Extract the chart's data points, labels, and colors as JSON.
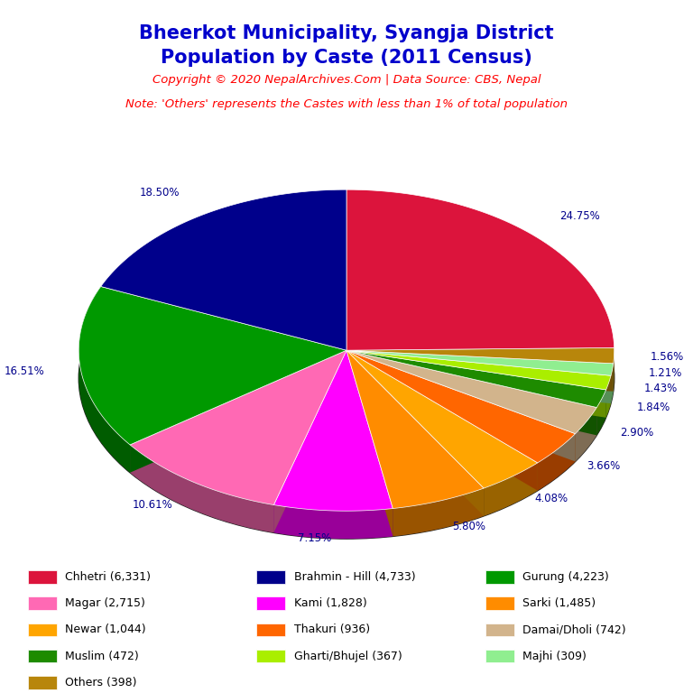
{
  "title_line1": "Bheerkot Municipality, Syangja District",
  "title_line2": "Population by Caste (2011 Census)",
  "title_color": "#0000CC",
  "copyright_text": "Copyright © 2020 NepalArchives.Com | Data Source: CBS, Nepal",
  "copyright_color": "#FF0000",
  "note_text": "Note: 'Others' represents the Castes with less than 1% of total population",
  "note_color": "#FF0000",
  "label_color": "#00008B",
  "cw_order": [
    0,
    12,
    11,
    10,
    9,
    8,
    7,
    6,
    5,
    4,
    3,
    2,
    1
  ],
  "values": [
    24.75,
    18.5,
    16.51,
    10.61,
    7.15,
    5.8,
    4.08,
    3.66,
    2.9,
    1.84,
    1.43,
    1.21,
    1.56
  ],
  "pct_labels": [
    "24.75%",
    "18.50%",
    "16.51%",
    "10.61%",
    "7.15%",
    "5.80%",
    "4.08%",
    "3.66%",
    "2.90%",
    "1.84%",
    "1.43%",
    "1.21%",
    "1.56%"
  ],
  "colors": [
    "#DC143C",
    "#00008B",
    "#009900",
    "#FF69B4",
    "#FF00FF",
    "#FF8C00",
    "#FFA500",
    "#FF6600",
    "#D2B48C",
    "#1E8B00",
    "#AAEE00",
    "#90EE90",
    "#B8860B"
  ],
  "legend_labels": [
    "Chhetri (6,331)",
    "Brahmin - Hill (4,733)",
    "Gurung (4,223)",
    "Magar (2,715)",
    "Kami (1,828)",
    "Sarki (1,485)",
    "Newar (1,044)",
    "Thakuri (936)",
    "Damai/Dholi (742)",
    "Muslim (472)",
    "Gharti/Bhujel (367)",
    "Majhi (309)",
    "Others (398)"
  ],
  "legend_colors": [
    "#DC143C",
    "#00008B",
    "#009900",
    "#FF69B4",
    "#FF00FF",
    "#FF8C00",
    "#FFA500",
    "#FF6600",
    "#D2B48C",
    "#1E8B00",
    "#AAEE00",
    "#90EE90",
    "#B8860B"
  ]
}
